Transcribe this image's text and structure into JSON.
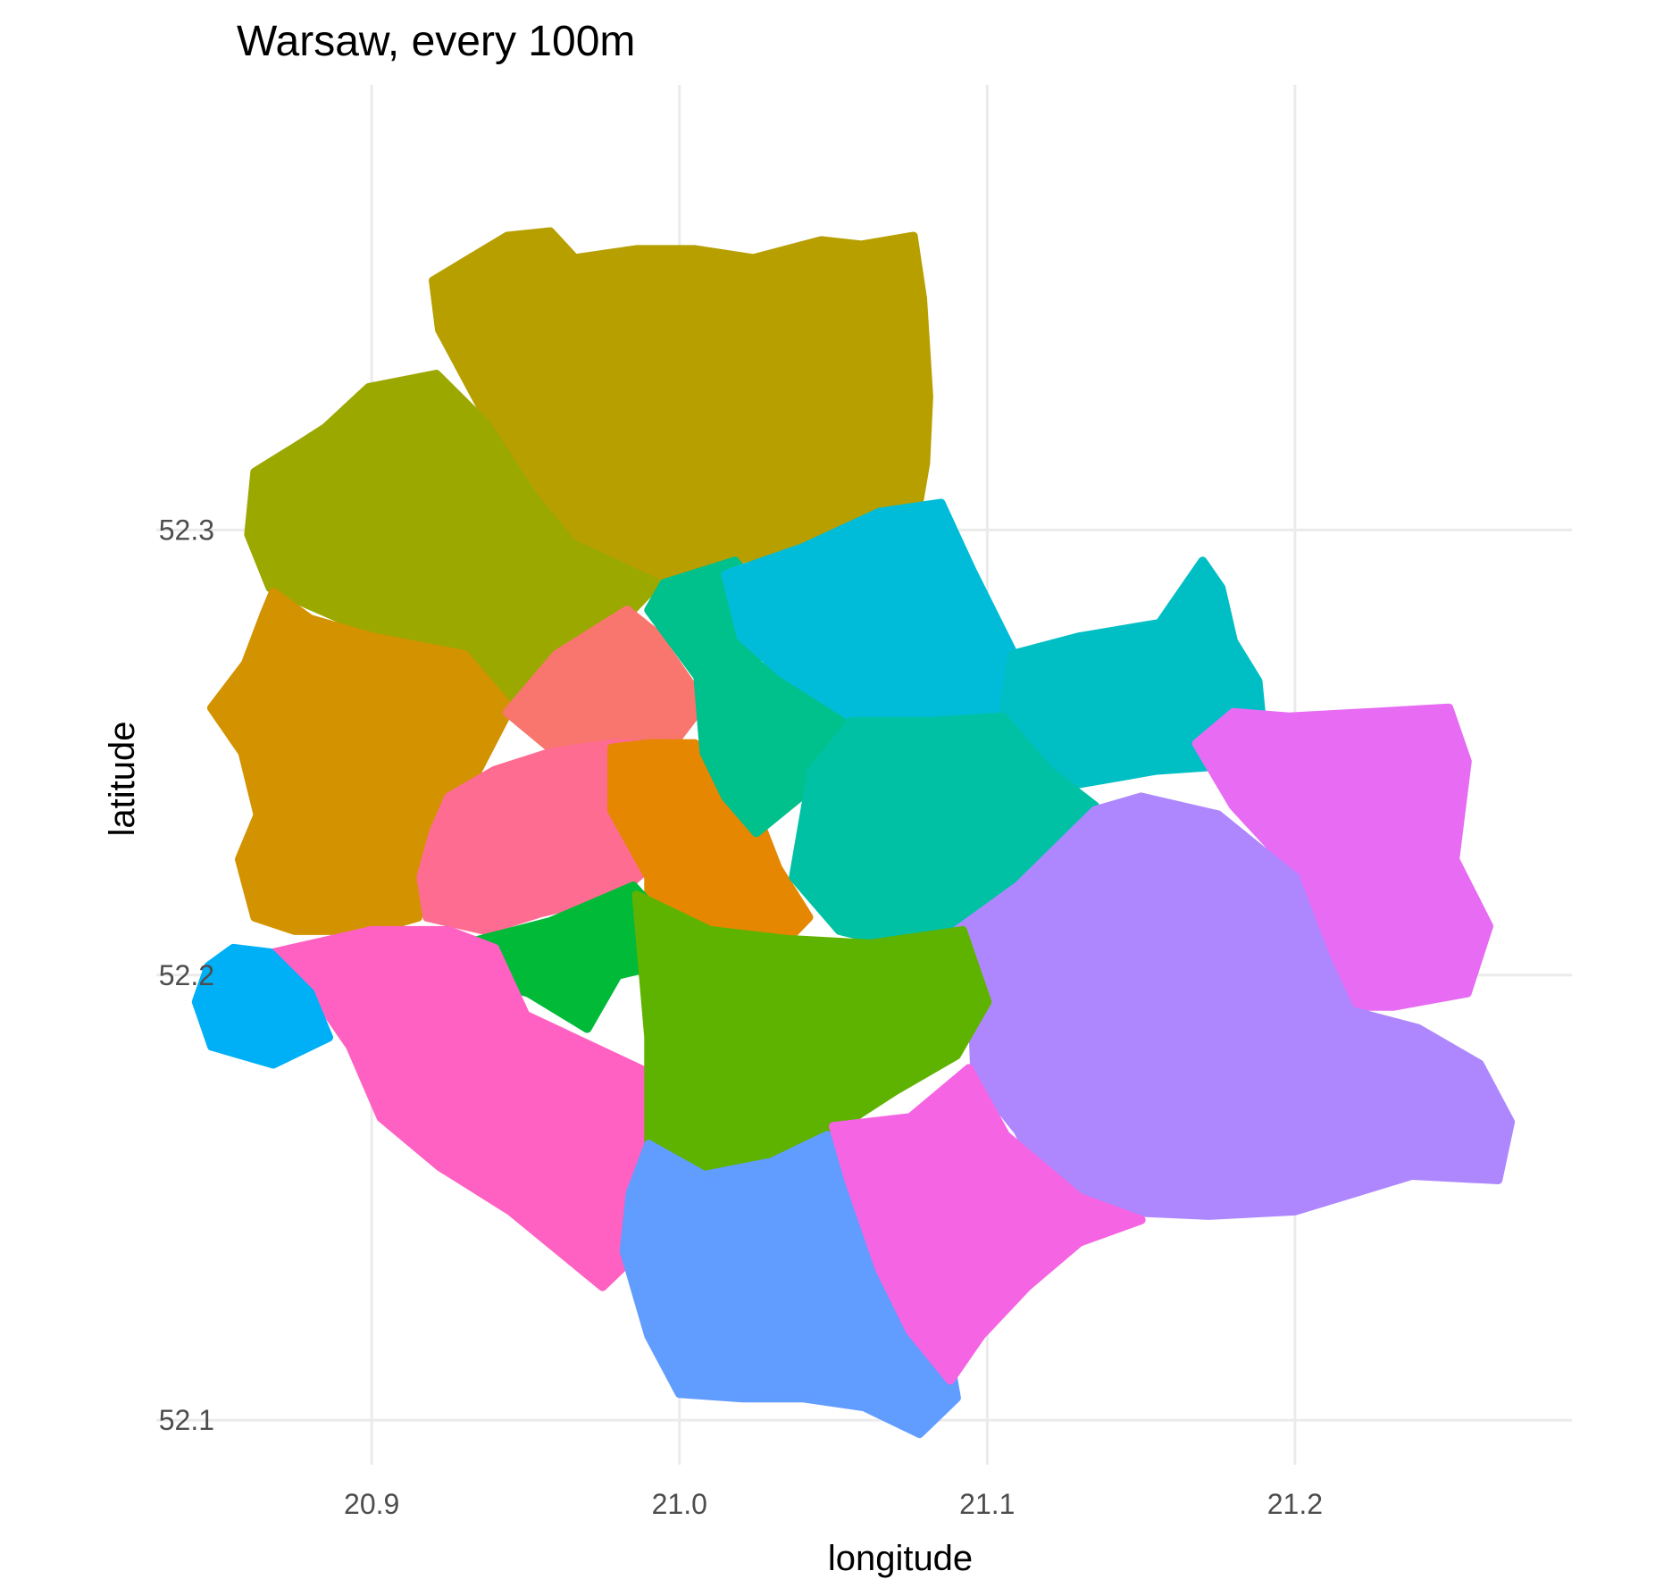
{
  "chart_data": {
    "type": "map",
    "title": "Warsaw, every 100m",
    "xlabel": "longitude",
    "ylabel": "latitude",
    "xlim": [
      20.83,
      21.29
    ],
    "ylim": [
      52.09,
      52.4
    ],
    "x_ticks": [
      20.9,
      21.0,
      21.1,
      21.2
    ],
    "x_tick_labels": [
      "20.9",
      "21.0",
      "21.1",
      "21.2"
    ],
    "y_ticks": [
      52.1,
      52.2,
      52.3
    ],
    "y_tick_labels": [
      "52.1",
      "52.2",
      "52.3"
    ],
    "grid": true,
    "legend": "none",
    "regions": [
      {
        "color": "#B79F00",
        "boundary": [
          [
            20.92,
            52.356
          ],
          [
            20.944,
            52.366
          ],
          [
            20.958,
            52.367
          ],
          [
            20.966,
            52.361
          ],
          [
            20.986,
            52.363
          ],
          [
            21.005,
            52.363
          ],
          [
            21.024,
            52.361
          ],
          [
            21.046,
            52.365
          ],
          [
            21.059,
            52.364
          ],
          [
            21.076,
            52.366
          ],
          [
            21.079,
            52.352
          ],
          [
            21.081,
            52.33
          ],
          [
            21.08,
            52.315
          ],
          [
            21.077,
            52.303
          ],
          [
            21.065,
            52.304
          ],
          [
            21.038,
            52.297
          ],
          [
            21.013,
            52.292
          ],
          [
            20.995,
            52.288
          ],
          [
            20.976,
            52.291
          ],
          [
            20.955,
            52.299
          ],
          [
            20.944,
            52.309
          ],
          [
            20.936,
            52.327
          ],
          [
            20.922,
            52.345
          ]
        ]
      },
      {
        "color": "#9BA800",
        "boundary": [
          [
            20.885,
            52.323
          ],
          [
            20.899,
            52.332
          ],
          [
            20.921,
            52.335
          ],
          [
            20.937,
            52.324
          ],
          [
            20.952,
            52.308
          ],
          [
            20.965,
            52.297
          ],
          [
            20.993,
            52.288
          ],
          [
            20.975,
            52.275
          ],
          [
            20.953,
            52.263
          ],
          [
            20.94,
            52.262
          ],
          [
            20.91,
            52.274
          ],
          [
            20.88,
            52.283
          ],
          [
            20.867,
            52.287
          ],
          [
            20.86,
            52.299
          ],
          [
            20.862,
            52.313
          ],
          [
            20.876,
            52.319
          ]
        ]
      },
      {
        "color": "#D39200",
        "boundary": [
          [
            20.868,
            52.286
          ],
          [
            20.88,
            52.28
          ],
          [
            20.9,
            52.276
          ],
          [
            20.93,
            52.272
          ],
          [
            20.945,
            52.26
          ],
          [
            20.93,
            52.24
          ],
          [
            20.918,
            52.226
          ],
          [
            20.915,
            52.213
          ],
          [
            20.9,
            52.21
          ],
          [
            20.875,
            52.21
          ],
          [
            20.862,
            52.213
          ],
          [
            20.857,
            52.226
          ],
          [
            20.863,
            52.236
          ],
          [
            20.858,
            52.25
          ],
          [
            20.848,
            52.26
          ],
          [
            20.859,
            52.27
          ],
          [
            20.865,
            52.281
          ]
        ]
      },
      {
        "color": "#F8766D",
        "boundary": [
          [
            20.944,
            52.259
          ],
          [
            20.96,
            52.272
          ],
          [
            20.983,
            52.282
          ],
          [
            20.992,
            52.277
          ],
          [
            21.008,
            52.261
          ],
          [
            20.998,
            52.252
          ],
          [
            20.958,
            52.251
          ]
        ]
      },
      {
        "color": "#FF6C91",
        "boundary": [
          [
            20.92,
            52.232
          ],
          [
            20.925,
            52.24
          ],
          [
            20.94,
            52.246
          ],
          [
            20.958,
            52.25
          ],
          [
            20.978,
            52.252
          ],
          [
            20.995,
            52.252
          ],
          [
            20.998,
            52.24
          ],
          [
            20.988,
            52.223
          ],
          [
            20.98,
            52.218
          ],
          [
            20.955,
            52.214
          ],
          [
            20.937,
            52.21
          ],
          [
            20.918,
            52.213
          ],
          [
            20.916,
            52.222
          ]
        ]
      },
      {
        "color": "#E58700",
        "boundary": [
          [
            20.978,
            52.251
          ],
          [
            20.99,
            52.252
          ],
          [
            21.005,
            52.252
          ],
          [
            21.023,
            52.24
          ],
          [
            21.032,
            52.224
          ],
          [
            21.042,
            52.213
          ],
          [
            21.035,
            52.208
          ],
          [
            21.015,
            52.206
          ],
          [
            21.002,
            52.211
          ],
          [
            20.99,
            52.21
          ],
          [
            20.99,
            52.222
          ],
          [
            20.978,
            52.237
          ]
        ]
      },
      {
        "color": "#00BA38",
        "boundary": [
          [
            20.93,
            52.207
          ],
          [
            20.958,
            52.212
          ],
          [
            20.985,
            52.22
          ],
          [
            20.993,
            52.214
          ],
          [
            20.992,
            52.202
          ],
          [
            20.98,
            52.2
          ],
          [
            20.97,
            52.188
          ],
          [
            20.951,
            52.196
          ],
          [
            20.93,
            52.2
          ]
        ]
      },
      {
        "color": "#00C08B",
        "boundary": [
          [
            20.995,
            52.288
          ],
          [
            21.018,
            52.293
          ],
          [
            21.03,
            52.283
          ],
          [
            21.025,
            52.27
          ],
          [
            21.052,
            52.258
          ],
          [
            21.068,
            52.254
          ],
          [
            21.048,
            52.245
          ],
          [
            21.025,
            52.232
          ],
          [
            21.015,
            52.24
          ],
          [
            21.008,
            52.25
          ],
          [
            21.006,
            52.267
          ],
          [
            20.99,
            52.282
          ]
        ]
      },
      {
        "color": "#00BCD8",
        "boundary": [
          [
            21.015,
            52.29
          ],
          [
            21.04,
            52.296
          ],
          [
            21.065,
            52.304
          ],
          [
            21.085,
            52.306
          ],
          [
            21.095,
            52.291
          ],
          [
            21.108,
            52.273
          ],
          [
            21.108,
            52.257
          ],
          [
            21.08,
            52.258
          ],
          [
            21.058,
            52.257
          ],
          [
            21.033,
            52.268
          ],
          [
            21.02,
            52.276
          ]
        ]
      },
      {
        "color": "#00BFC4",
        "boundary": [
          [
            21.108,
            52.272
          ],
          [
            21.13,
            52.276
          ],
          [
            21.156,
            52.279
          ],
          [
            21.17,
            52.293
          ],
          [
            21.176,
            52.287
          ],
          [
            21.18,
            52.275
          ],
          [
            21.188,
            52.266
          ],
          [
            21.19,
            52.252
          ],
          [
            21.176,
            52.247
          ],
          [
            21.155,
            52.246
          ],
          [
            21.13,
            52.243
          ],
          [
            21.115,
            52.246
          ],
          [
            21.105,
            52.258
          ]
        ]
      },
      {
        "color": "#00C1A3",
        "boundary": [
          [
            21.043,
            52.246
          ],
          [
            21.056,
            52.257
          ],
          [
            21.082,
            52.257
          ],
          [
            21.105,
            52.258
          ],
          [
            21.12,
            52.246
          ],
          [
            21.135,
            52.238
          ],
          [
            21.128,
            52.226
          ],
          [
            21.108,
            52.216
          ],
          [
            21.092,
            52.208
          ],
          [
            21.07,
            52.207
          ],
          [
            21.052,
            52.21
          ],
          [
            21.037,
            52.222
          ]
        ]
      },
      {
        "color": "#E76BF3",
        "boundary": [
          [
            21.18,
            52.259
          ],
          [
            21.198,
            52.258
          ],
          [
            21.225,
            52.259
          ],
          [
            21.25,
            52.26
          ],
          [
            21.256,
            52.248
          ],
          [
            21.252,
            52.226
          ],
          [
            21.263,
            52.211
          ],
          [
            21.256,
            52.196
          ],
          [
            21.232,
            52.193
          ],
          [
            21.215,
            52.193
          ],
          [
            21.205,
            52.205
          ],
          [
            21.2,
            52.223
          ],
          [
            21.18,
            52.238
          ],
          [
            21.168,
            52.252
          ]
        ]
      },
      {
        "color": "#AE87FF",
        "boundary": [
          [
            21.09,
            52.21
          ],
          [
            21.11,
            52.22
          ],
          [
            21.135,
            52.237
          ],
          [
            21.15,
            52.24
          ],
          [
            21.175,
            52.236
          ],
          [
            21.2,
            52.222
          ],
          [
            21.21,
            52.204
          ],
          [
            21.218,
            52.192
          ],
          [
            21.24,
            52.188
          ],
          [
            21.26,
            52.18
          ],
          [
            21.27,
            52.167
          ],
          [
            21.266,
            52.154
          ],
          [
            21.238,
            52.155
          ],
          [
            21.2,
            52.147
          ],
          [
            21.172,
            52.146
          ],
          [
            21.14,
            52.147
          ],
          [
            21.12,
            52.151
          ],
          [
            21.11,
            52.165
          ],
          [
            21.096,
            52.177
          ],
          [
            21.095,
            52.195
          ]
        ]
      },
      {
        "color": "#FF61C3",
        "boundary": [
          [
            20.868,
            52.205
          ],
          [
            20.9,
            52.21
          ],
          [
            20.925,
            52.21
          ],
          [
            20.94,
            52.206
          ],
          [
            20.95,
            52.191
          ],
          [
            20.99,
            52.178
          ],
          [
            20.99,
            52.16
          ],
          [
            20.99,
            52.14
          ],
          [
            20.975,
            52.13
          ],
          [
            20.945,
            52.147
          ],
          [
            20.922,
            52.157
          ],
          [
            20.903,
            52.168
          ],
          [
            20.893,
            52.184
          ],
          [
            20.884,
            52.193
          ]
        ]
      },
      {
        "color": "#5EB300",
        "boundary": [
          [
            20.986,
            52.218
          ],
          [
            21.01,
            52.21
          ],
          [
            21.035,
            52.208
          ],
          [
            21.062,
            52.207
          ],
          [
            21.092,
            52.21
          ],
          [
            21.1,
            52.194
          ],
          [
            21.09,
            52.182
          ],
          [
            21.07,
            52.174
          ],
          [
            21.05,
            52.165
          ],
          [
            21.03,
            52.16
          ],
          [
            21.012,
            52.156
          ],
          [
            20.99,
            52.16
          ],
          [
            20.99,
            52.186
          ]
        ]
      },
      {
        "color": "#619CFF",
        "boundary": [
          [
            20.99,
            52.162
          ],
          [
            21.008,
            52.155
          ],
          [
            21.03,
            52.158
          ],
          [
            21.048,
            52.164
          ],
          [
            21.06,
            52.153
          ],
          [
            21.07,
            52.14
          ],
          [
            21.085,
            52.125
          ],
          [
            21.09,
            52.105
          ],
          [
            21.078,
            52.097
          ],
          [
            21.06,
            52.103
          ],
          [
            21.04,
            52.105
          ],
          [
            21.02,
            52.105
          ],
          [
            21.0,
            52.106
          ],
          [
            20.99,
            52.119
          ],
          [
            20.982,
            52.138
          ],
          [
            20.984,
            52.151
          ]
        ]
      },
      {
        "color": "#F564E3",
        "boundary": [
          [
            21.05,
            52.166
          ],
          [
            21.075,
            52.168
          ],
          [
            21.094,
            52.179
          ],
          [
            21.106,
            52.164
          ],
          [
            21.13,
            52.15
          ],
          [
            21.15,
            52.145
          ],
          [
            21.13,
            52.14
          ],
          [
            21.113,
            52.13
          ],
          [
            21.098,
            52.119
          ],
          [
            21.088,
            52.109
          ],
          [
            21.075,
            52.12
          ],
          [
            21.065,
            52.134
          ],
          [
            21.055,
            52.154
          ]
        ]
      },
      {
        "color": "#00B0F6",
        "boundary": [
          [
            20.847,
            52.202
          ],
          [
            20.855,
            52.206
          ],
          [
            20.867,
            52.205
          ],
          [
            20.88,
            52.196
          ],
          [
            20.886,
            52.186
          ],
          [
            20.868,
            52.18
          ],
          [
            20.848,
            52.184
          ],
          [
            20.843,
            52.194
          ]
        ]
      }
    ]
  }
}
